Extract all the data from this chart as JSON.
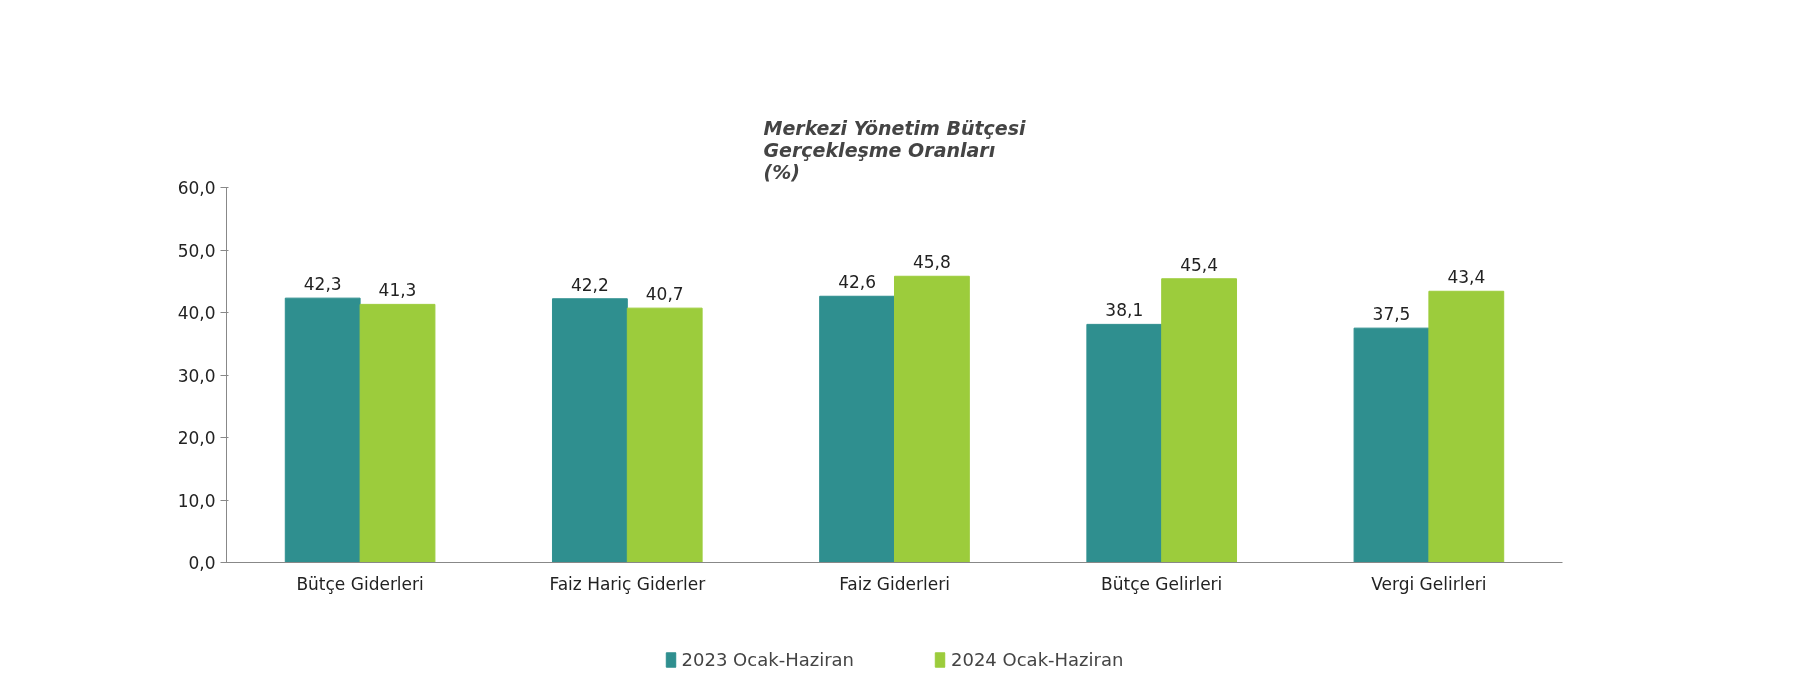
{
  "chart_data": {
    "type": "bar",
    "title": "Merkezi Yönetim Bütçesi\nGerçekleşme Oranları\n(%)",
    "categories": [
      "Bütçe Giderleri",
      "Faiz Hariç Giderler",
      "Faiz Giderleri",
      "Bütçe Gelirleri",
      "Vergi Gelirleri"
    ],
    "series": [
      {
        "name": "2023 Ocak-Haziran",
        "color": "#2f8f8f",
        "values": [
          42.3,
          42.2,
          42.6,
          38.1,
          37.5
        ],
        "value_labels": [
          "42,3",
          "42,2",
          "42,6",
          "38,1",
          "37,5"
        ]
      },
      {
        "name": "2024 Ocak-Haziran",
        "color": "#9ccc3c",
        "values": [
          41.3,
          40.7,
          45.8,
          45.4,
          43.4
        ],
        "value_labels": [
          "41,3",
          "40,7",
          "45,8",
          "45,4",
          "43,4"
        ]
      }
    ],
    "ylim": [
      0,
      60
    ],
    "yticks": [
      {
        "value": 0,
        "label": "0,0"
      },
      {
        "value": 10,
        "label": "10,0"
      },
      {
        "value": 20,
        "label": "20,0"
      },
      {
        "value": 30,
        "label": "30,0"
      },
      {
        "value": 40,
        "label": "40,0"
      },
      {
        "value": 50,
        "label": "50,0"
      },
      {
        "value": 60,
        "label": "60,0"
      }
    ],
    "grid": false,
    "legend": "bottom"
  }
}
